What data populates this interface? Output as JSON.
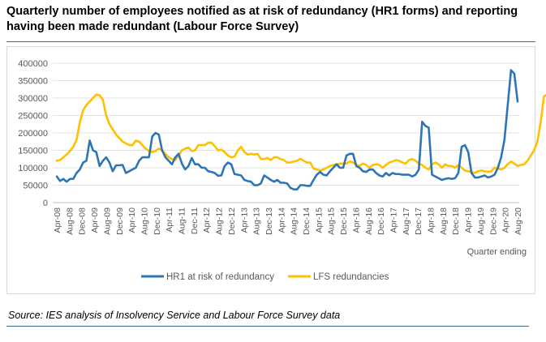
{
  "title": "Quarterly number of employees notified as at risk of redundancy (HR1 forms) and reporting having been made redundant (Labour Force Survey)",
  "source": "Source: IES analysis of Insolvency Service and Labour Force Survey data",
  "chart_data": {
    "type": "line",
    "title": "",
    "xlabel": "Quarter ending",
    "ylabel": "",
    "ylim": [
      0,
      400000
    ],
    "yticks": [
      "0",
      "50000",
      "100000",
      "150000",
      "200000",
      "250000",
      "300000",
      "350000",
      "400000"
    ],
    "grid": true,
    "legend_position": "bottom",
    "x_tick_labels": [
      "Apr-08",
      "Aug-08",
      "Dec-08",
      "Apr-09",
      "Aug-09",
      "Dec-09",
      "Apr-10",
      "Aug-10",
      "Dec-10",
      "Apr-11",
      "Aug-11",
      "Dec-11",
      "Apr-12",
      "Aug-12",
      "Dec-12",
      "Apr-13",
      "Aug-13",
      "Dec-13",
      "Apr-14",
      "Aug-14",
      "Dec-14",
      "Apr-15",
      "Aug-15",
      "Dec-15",
      "Apr-16",
      "Aug-16",
      "Dec-16",
      "Apr-17",
      "Aug-17",
      "Dec-17",
      "Apr-18",
      "Aug-18",
      "Dec-18",
      "Apr-19",
      "Aug-19",
      "Dec-19",
      "Apr-20",
      "Aug-20"
    ],
    "series": [
      {
        "name": "HR1 at risk of redundancy",
        "color": "#2e75b6",
        "values": [
          75000,
          62000,
          68000,
          60000,
          68000,
          68000,
          85000,
          95000,
          115000,
          120000,
          178000,
          150000,
          145000,
          105000,
          120000,
          130000,
          115000,
          90000,
          107000,
          107000,
          108000,
          85000,
          90000,
          95000,
          100000,
          120000,
          130000,
          130000,
          130000,
          190000,
          200000,
          195000,
          150000,
          130000,
          120000,
          110000,
          130000,
          140000,
          112000,
          95000,
          105000,
          128000,
          110000,
          110000,
          100000,
          100000,
          90000,
          88000,
          85000,
          77000,
          78000,
          105000,
          115000,
          110000,
          82000,
          80000,
          78000,
          65000,
          62000,
          60000,
          50000,
          50000,
          55000,
          78000,
          72000,
          65000,
          60000,
          65000,
          57000,
          57000,
          55000,
          42000,
          38000,
          38000,
          50000,
          50000,
          48000,
          48000,
          65000,
          80000,
          88000,
          80000,
          78000,
          90000,
          100000,
          110000,
          100000,
          100000,
          135000,
          140000,
          140000,
          105000,
          100000,
          90000,
          88000,
          95000,
          95000,
          85000,
          78000,
          75000,
          85000,
          78000,
          85000,
          82000,
          82000,
          80000,
          80000,
          80000,
          75000,
          80000,
          95000,
          232000,
          220000,
          215000,
          80000,
          75000,
          70000,
          65000,
          68000,
          70000,
          68000,
          70000,
          85000,
          160000,
          165000,
          145000,
          85000,
          72000,
          72000,
          75000,
          78000,
          72000,
          75000,
          80000,
          100000,
          130000,
          180000,
          280000,
          380000,
          370000,
          290000
        ]
      },
      {
        "name": "LFS redundancies",
        "color": "#ffc000",
        "values": [
          120000,
          122000,
          130000,
          138000,
          148000,
          160000,
          180000,
          230000,
          265000,
          280000,
          290000,
          300000,
          310000,
          308000,
          295000,
          250000,
          225000,
          210000,
          195000,
          185000,
          175000,
          170000,
          165000,
          165000,
          178000,
          175000,
          165000,
          155000,
          148000,
          145000,
          148000,
          155000,
          150000,
          140000,
          130000,
          125000,
          122000,
          135000,
          150000,
          155000,
          158000,
          148000,
          150000,
          165000,
          165000,
          165000,
          172000,
          172000,
          162000,
          150000,
          152000,
          145000,
          135000,
          130000,
          132000,
          150000,
          160000,
          145000,
          138000,
          140000,
          138000,
          140000,
          125000,
          125000,
          128000,
          122000,
          130000,
          130000,
          125000,
          122000,
          115000,
          115000,
          118000,
          120000,
          126000,
          120000,
          115000,
          115000,
          98000,
          95000,
          92000,
          95000,
          100000,
          105000,
          108000,
          110000,
          112000,
          112000,
          112000,
          118000,
          115000,
          108000,
          106000,
          112000,
          108000,
          100000,
          108000,
          110000,
          108000,
          100000,
          108000,
          115000,
          118000,
          122000,
          120000,
          115000,
          112000,
          122000,
          125000,
          120000,
          112000,
          108000,
          100000,
          95000,
          110000,
          115000,
          110000,
          100000,
          110000,
          105000,
          105000,
          100000,
          108000,
          100000,
          92000,
          90000,
          88000,
          85000,
          90000,
          92000,
          90000,
          88000,
          90000,
          100000,
          98000,
          95000,
          100000,
          110000,
          118000,
          112000,
          105000,
          108000,
          110000,
          120000,
          135000,
          150000,
          175000,
          230000,
          305000,
          310000
        ]
      }
    ]
  }
}
